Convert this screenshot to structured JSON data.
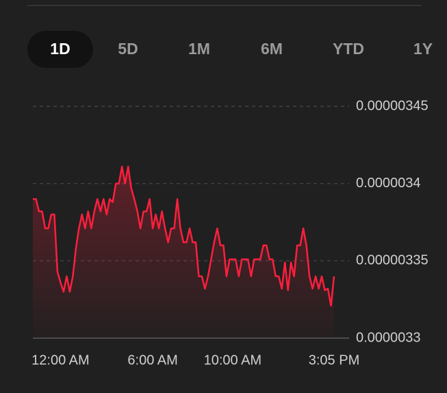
{
  "tabs": [
    "1D",
    "5D",
    "1M",
    "6M",
    "YTD",
    "1Y"
  ],
  "active_tab": 0,
  "chart_data": {
    "type": "line",
    "color": "#ff1f3d",
    "values": [
      3.39e-06,
      3.39e-06,
      3.382e-06,
      3.382e-06,
      3.371e-06,
      3.371e-06,
      3.38e-06,
      3.38e-06,
      3.343e-06,
      3.336e-06,
      3.33e-06,
      3.34e-06,
      3.33e-06,
      3.34e-06,
      3.358e-06,
      3.371e-06,
      3.38e-06,
      3.371e-06,
      3.382e-06,
      3.371e-06,
      3.382e-06,
      3.39e-06,
      3.382e-06,
      3.39e-06,
      3.38e-06,
      3.39e-06,
      3.388e-06,
      3.4e-06,
      3.4e-06,
      3.411e-06,
      3.4e-06,
      3.411e-06,
      3.397e-06,
      3.39e-06,
      3.382e-06,
      3.371e-06,
      3.382e-06,
      3.382e-06,
      3.39e-06,
      3.371e-06,
      3.38e-06,
      3.371e-06,
      3.382e-06,
      3.371e-06,
      3.362e-06,
      3.371e-06,
      3.371e-06,
      3.39e-06,
      3.371e-06,
      3.362e-06,
      3.362e-06,
      3.371e-06,
      3.362e-06,
      3.362e-06,
      3.34e-06,
      3.34e-06,
      3.332e-06,
      3.34e-06,
      3.351e-06,
      3.362e-06,
      3.371e-06,
      3.36e-06,
      3.36e-06,
      3.34e-06,
      3.351e-06,
      3.351e-06,
      3.351e-06,
      3.34e-06,
      3.351e-06,
      3.351e-06,
      3.351e-06,
      3.34e-06,
      3.351e-06,
      3.351e-06,
      3.351e-06,
      3.36e-06,
      3.36e-06,
      3.351e-06,
      3.351e-06,
      3.34e-06,
      3.34e-06,
      3.332e-06,
      3.349e-06,
      3.331e-06,
      3.349e-06,
      3.34e-06,
      3.36e-06,
      3.36e-06,
      3.371e-06,
      3.36e-06,
      3.34e-06,
      3.332e-06,
      3.34e-06,
      3.332e-06,
      3.34e-06,
      3.331e-06,
      3.332e-06,
      3.321e-06,
      3.34e-06
    ],
    "xticks": [
      {
        "value": 9,
        "label": "12:00 AM"
      },
      {
        "value": 39,
        "label": "6:00 AM"
      },
      {
        "value": 65,
        "label": "10:00 AM"
      },
      {
        "value": 98,
        "label": "3:05 PM"
      }
    ],
    "ylim": [
      3.3e-06,
      3.45e-06
    ],
    "yticks": [
      3.3e-06,
      3.35e-06,
      3.4e-06,
      3.45e-06
    ],
    "grid": true
  }
}
